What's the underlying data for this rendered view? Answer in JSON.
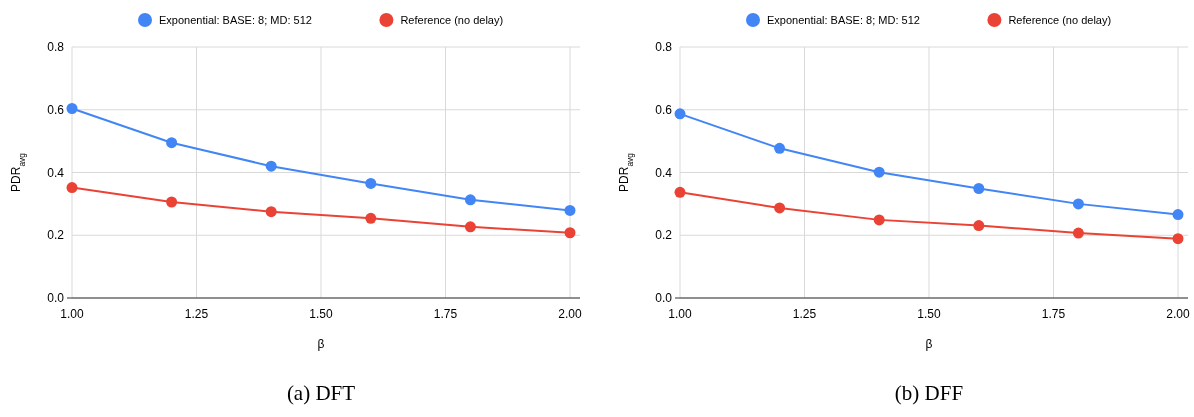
{
  "chart_data": [
    {
      "type": "line",
      "title": "(a) DFT",
      "xlabel": "β",
      "ylabel": "PDR$_{avg}$",
      "x": [
        1.0,
        1.2,
        1.4,
        1.6,
        1.8,
        2.0
      ],
      "series": [
        {
          "name": "Exponential: BASE: 8; MD: 512",
          "color": "#4285f4",
          "values": [
            0.604,
            0.495,
            0.42,
            0.365,
            0.313,
            0.279
          ]
        },
        {
          "name": "Reference (no delay)",
          "color": "#ea4335",
          "values": [
            0.352,
            0.306,
            0.275,
            0.254,
            0.227,
            0.208
          ]
        }
      ],
      "xlim": [
        1.0,
        2.0
      ],
      "xticks": [
        {
          "value": 1,
          "label": "1.00"
        },
        {
          "value": 1.25,
          "label": "1.25"
        },
        {
          "value": 1.5,
          "label": "1.50"
        },
        {
          "value": 1.75,
          "label": "1.75"
        },
        {
          "value": 2,
          "label": "2.00"
        }
      ],
      "ylim": [
        0,
        0.8
      ],
      "yticks": [
        {
          "value": 0,
          "label": "0.0"
        },
        0.2,
        0.4,
        0.6,
        0.8
      ],
      "grid": true,
      "legend": "top",
      "marker": "circle",
      "line_style": "solid"
    },
    {
      "type": "line",
      "title": "(b) DFF",
      "xlabel": "β",
      "ylabel": "PDR$_{avg}$",
      "x": [
        1.0,
        1.2,
        1.4,
        1.6,
        1.8,
        2.0
      ],
      "series": [
        {
          "name": "Exponential: BASE: 8; MD: 512",
          "color": "#4285f4",
          "values": [
            0.587,
            0.477,
            0.401,
            0.349,
            0.3,
            0.266
          ]
        },
        {
          "name": "Reference (no delay)",
          "color": "#ea4335",
          "values": [
            0.337,
            0.287,
            0.249,
            0.231,
            0.207,
            0.189
          ]
        }
      ],
      "xlim": [
        1.0,
        2.0
      ],
      "xticks": [
        {
          "value": 1,
          "label": "1.00"
        },
        {
          "value": 1.25,
          "label": "1.25"
        },
        {
          "value": 1.5,
          "label": "1.50"
        },
        {
          "value": 1.75,
          "label": "1.75"
        },
        {
          "value": 2,
          "label": "2.00"
        }
      ],
      "ylim": [
        0,
        0.8
      ],
      "yticks": [
        {
          "value": 0,
          "label": "0.0"
        },
        0.2,
        0.4,
        0.6,
        0.8
      ],
      "grid": true,
      "legend": "top",
      "marker": "circle",
      "line_style": "solid"
    }
  ]
}
